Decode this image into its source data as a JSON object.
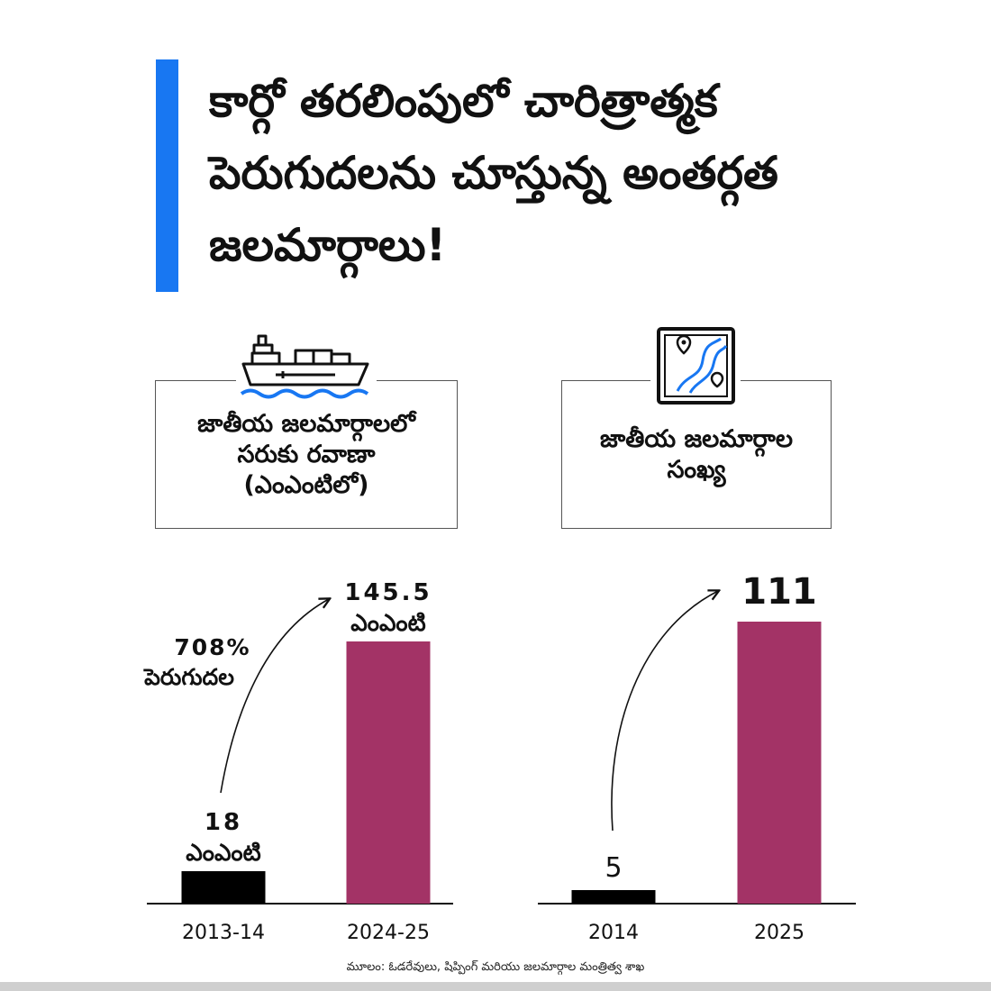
{
  "headline": {
    "line1": "కార్గో తరలింపులో చారిత్రాత్మక",
    "line2": "పెరుగుదలను చూస్తున్న అంతర్గత",
    "line3": "జలమార్గాలు!"
  },
  "colors": {
    "accent": "#1877f2",
    "bar_old": "#000000",
    "bar_new": "#a33366",
    "ship_water": "#1877f2"
  },
  "icons": {
    "left": "cargo-ship-icon",
    "right": "waterway-map-icon"
  },
  "chart_data": [
    {
      "type": "bar",
      "title": "జాతీయ జలమార్గాలలో\nసరుకు రవాణా\n(ఎంఎంటిలో)",
      "categories": [
        "2013-14",
        "2024-25"
      ],
      "values": [
        18,
        145.5
      ],
      "data_labels": [
        {
          "value": "18",
          "unit": "ఎంఎంటి"
        },
        {
          "value": "145.5",
          "unit": "ఎంఎంటి"
        }
      ],
      "annotation": {
        "percent": "708%",
        "text": "పెరుగుదల"
      },
      "bar_colors": [
        "#000000",
        "#a33366"
      ]
    },
    {
      "type": "bar",
      "title": "జాతీయ జలమార్గాల\nసంఖ్య",
      "categories": [
        "2014",
        "2025"
      ],
      "values": [
        5,
        111
      ],
      "data_labels": [
        {
          "value": "5"
        },
        {
          "value": "111"
        }
      ],
      "bar_colors": [
        "#000000",
        "#a33366"
      ]
    }
  ],
  "source": "మూలం: ఓడరేవులు, షిప్పింగ్ మరియు జలమార్గాల మంత్రిత్వ శాఖ"
}
